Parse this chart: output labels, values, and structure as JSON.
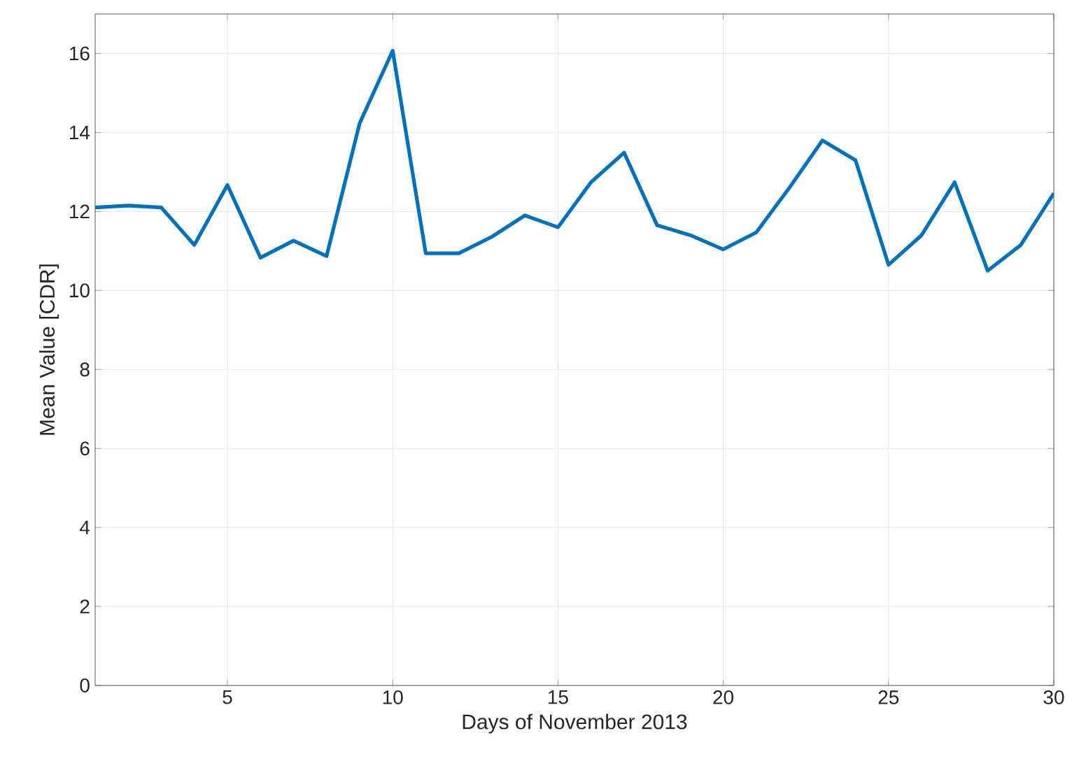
{
  "chart_data": {
    "type": "line",
    "xlabel": "Days of November 2013",
    "ylabel": "Mean Value [CDR]",
    "x": [
      1,
      2,
      3,
      4,
      5,
      6,
      7,
      8,
      9,
      10,
      11,
      12,
      13,
      14,
      15,
      16,
      17,
      18,
      19,
      20,
      21,
      22,
      23,
      24,
      25,
      26,
      27,
      28,
      29,
      30
    ],
    "series": [
      {
        "color": "#0072bd",
        "values": [
          12.1,
          12.15,
          12.1,
          11.15,
          12.67,
          10.83,
          11.26,
          10.87,
          14.23,
          16.07,
          10.94,
          10.94,
          11.36,
          11.9,
          11.6,
          12.74,
          13.49,
          11.65,
          11.4,
          11.04,
          11.47,
          12.6,
          13.8,
          13.3,
          10.65,
          11.4,
          12.74,
          10.5,
          11.15,
          12.46
        ]
      }
    ],
    "xlim": [
      1,
      30
    ],
    "xticks": [
      5,
      10,
      15,
      20,
      25,
      30
    ],
    "ylim": [
      0,
      17
    ],
    "yticks": [
      0,
      2,
      4,
      6,
      8,
      10,
      12,
      14,
      16
    ],
    "grid": true,
    "marker": "none",
    "line_style": "solid"
  }
}
